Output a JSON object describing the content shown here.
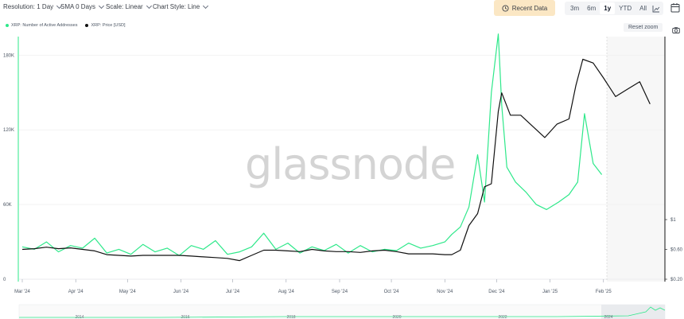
{
  "toolbar": {
    "resolution": "Resolution: 1 Day",
    "sma": "SMA 0 Days",
    "scale": "Scale: Linear",
    "chart_style": "Chart Style: Line",
    "recent_data": "Recent Data",
    "ranges": [
      "3m",
      "6m",
      "1y",
      "YTD",
      "All"
    ],
    "active_range": "1y",
    "reset_zoom": "Reset zoom"
  },
  "colors": {
    "active_addresses": "#2ee88a",
    "price": "#111111",
    "recent_btn_bg": "#fbe7c4"
  },
  "icons": [
    "chevron-down-icon",
    "clock-icon",
    "log-scale-icon",
    "calendar-icon",
    "camera-icon"
  ],
  "watermark": "glassnode",
  "chart_data": {
    "type": "line",
    "series": [
      {
        "name": "XRP: Number of Active Addresses",
        "axis": "left",
        "color": "#2ee88a",
        "x": [
          "2024-03-01",
          "2024-03-08",
          "2024-03-15",
          "2024-03-22",
          "2024-03-29",
          "2024-04-05",
          "2024-04-12",
          "2024-04-19",
          "2024-04-26",
          "2024-05-03",
          "2024-05-10",
          "2024-05-17",
          "2024-05-24",
          "2024-05-31",
          "2024-06-07",
          "2024-06-14",
          "2024-06-21",
          "2024-06-28",
          "2024-07-05",
          "2024-07-12",
          "2024-07-19",
          "2024-07-26",
          "2024-08-02",
          "2024-08-09",
          "2024-08-16",
          "2024-08-23",
          "2024-08-30",
          "2024-09-06",
          "2024-09-13",
          "2024-09-20",
          "2024-09-27",
          "2024-10-04",
          "2024-10-11",
          "2024-10-18",
          "2024-10-25",
          "2024-11-01",
          "2024-11-05",
          "2024-11-10",
          "2024-11-15",
          "2024-11-20",
          "2024-11-24",
          "2024-11-28",
          "2024-12-02",
          "2024-12-04",
          "2024-12-07",
          "2024-12-12",
          "2024-12-18",
          "2024-12-24",
          "2024-12-30",
          "2025-01-06",
          "2025-01-12",
          "2025-01-17",
          "2025-01-21",
          "2025-01-26",
          "2025-01-31"
        ],
        "y": [
          26000,
          24000,
          30000,
          22000,
          27000,
          25000,
          33000,
          21000,
          24000,
          20000,
          28000,
          22000,
          25000,
          19000,
          27000,
          24000,
          31000,
          20000,
          22000,
          26000,
          37000,
          24000,
          29000,
          21000,
          26000,
          23000,
          28000,
          21000,
          27000,
          22000,
          24000,
          23000,
          29000,
          25000,
          27000,
          30000,
          36000,
          42000,
          58000,
          100000,
          62000,
          150000,
          197000,
          140000,
          90000,
          78000,
          70000,
          60000,
          56000,
          62000,
          68000,
          78000,
          133000,
          93000,
          84000
        ]
      },
      {
        "name": "XRP: Price [USD]",
        "axis": "right",
        "color": "#111111",
        "x": [
          "2024-03-01",
          "2024-03-08",
          "2024-03-15",
          "2024-03-22",
          "2024-03-29",
          "2024-04-05",
          "2024-04-12",
          "2024-04-19",
          "2024-04-26",
          "2024-05-03",
          "2024-05-10",
          "2024-05-17",
          "2024-05-24",
          "2024-05-31",
          "2024-06-07",
          "2024-06-14",
          "2024-06-21",
          "2024-06-28",
          "2024-07-05",
          "2024-07-12",
          "2024-07-19",
          "2024-07-26",
          "2024-08-02",
          "2024-08-09",
          "2024-08-16",
          "2024-08-23",
          "2024-08-30",
          "2024-09-06",
          "2024-09-13",
          "2024-09-20",
          "2024-09-27",
          "2024-10-04",
          "2024-10-11",
          "2024-10-18",
          "2024-10-25",
          "2024-11-01",
          "2024-11-05",
          "2024-11-10",
          "2024-11-15",
          "2024-11-20",
          "2024-11-24",
          "2024-11-28",
          "2024-12-02",
          "2024-12-04",
          "2024-12-09",
          "2024-12-15",
          "2024-12-22",
          "2024-12-29",
          "2025-01-05",
          "2025-01-12",
          "2025-01-16",
          "2025-01-20",
          "2025-01-26",
          "2025-02-01",
          "2025-02-08",
          "2025-02-15",
          "2025-02-22",
          "2025-02-28"
        ],
        "y": [
          0.6,
          0.61,
          0.63,
          0.61,
          0.62,
          0.6,
          0.58,
          0.53,
          0.52,
          0.51,
          0.52,
          0.52,
          0.52,
          0.52,
          0.51,
          0.5,
          0.49,
          0.48,
          0.45,
          0.52,
          0.59,
          0.59,
          0.58,
          0.57,
          0.6,
          0.58,
          0.57,
          0.57,
          0.56,
          0.58,
          0.59,
          0.57,
          0.54,
          0.54,
          0.54,
          0.53,
          0.53,
          0.59,
          0.92,
          1.08,
          1.44,
          1.48,
          2.45,
          2.7,
          2.4,
          2.4,
          2.25,
          2.1,
          2.28,
          2.35,
          2.8,
          3.15,
          3.1,
          2.9,
          2.65,
          2.75,
          2.85,
          2.55
        ]
      }
    ],
    "x_ticks": [
      "Mar '24",
      "Apr '24",
      "May '24",
      "Jun '24",
      "Jul '24",
      "Aug '24",
      "Sep '24",
      "Oct '24",
      "Nov '24",
      "Dec '24",
      "Jan '25",
      "Feb '25"
    ],
    "y_left_ticks": [
      "0",
      "60K",
      "120K",
      "180K"
    ],
    "y_right_ticks": [
      "$0.20",
      "$0.60",
      "$1"
    ],
    "navigator_labels": [
      "2014",
      "2016",
      "2018",
      "2020",
      "2022",
      "2024"
    ],
    "grid": true,
    "legend": "top-left"
  }
}
